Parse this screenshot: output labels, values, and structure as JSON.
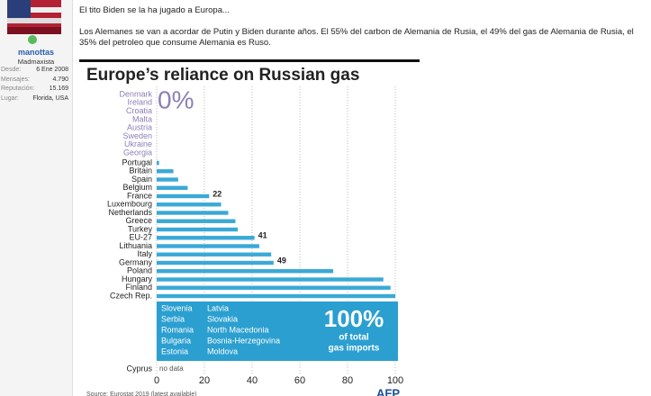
{
  "user": {
    "name": "manottas",
    "rank": "Madmaxista",
    "stats": [
      [
        "Desde:",
        "6 Ene 2008"
      ],
      [
        "Mensajes:",
        "4.790"
      ],
      [
        "Reputación:",
        "15.169"
      ],
      [
        "Lugar:",
        "Florida, USA"
      ]
    ]
  },
  "post": {
    "lines": [
      "El tito Biden se la ha jugado a Europa...",
      "Los Alemanes se van a acordar de Putin y Biden durante años. El 55% del carbon de Alemania de Rusia, el 49% del gas de Alemania de Rusia, el 35% del petroleo que consume Alemania es Ruso."
    ]
  },
  "chart_data": {
    "type": "bar",
    "orientation": "horizontal",
    "title": "Europe’s reliance on Russian gas",
    "zero_group": {
      "countries": [
        "Denmark",
        "Ireland",
        "Croatia",
        "Malta",
        "Austria",
        "Sweden",
        "Ukraine",
        "Georgia"
      ],
      "label": "0%"
    },
    "categories": [
      "Portugal",
      "Britain",
      "Spain",
      "Belgium",
      "France",
      "Luxembourg",
      "Netherlands",
      "Greece",
      "Turkey",
      "EU-27",
      "Lithuania",
      "Italy",
      "Germany",
      "Poland",
      "Hungary",
      "Finland",
      "Czech Rep."
    ],
    "values": [
      1,
      7,
      9,
      13,
      22,
      27,
      30,
      33,
      34,
      41,
      43,
      48,
      49,
      74,
      95,
      98,
      100
    ],
    "value_labels": [
      null,
      null,
      null,
      null,
      "22",
      null,
      null,
      null,
      null,
      "41",
      null,
      null,
      "49",
      null,
      null,
      null,
      null
    ],
    "color": "#3aa9d6",
    "full_group": {
      "countries": [
        "Slovenia",
        "Serbia",
        "Romania",
        "Bulgaria",
        "Estonia",
        "Latvia",
        "Slovakia",
        "North Macedonia",
        "Bosnia-Herzegovina",
        "Moldova"
      ],
      "label": "100%",
      "note": [
        "of total",
        "gas imports"
      ],
      "color": "#2b9fd0"
    },
    "no_data": {
      "country": "Cyprus",
      "label": "no data"
    },
    "xlim": [
      0,
      100
    ],
    "xticks": [
      0,
      20,
      40,
      60,
      80,
      100
    ],
    "grid": true,
    "source": "Source: Eurostat 2019 (latest available)",
    "logo": "AFP"
  }
}
